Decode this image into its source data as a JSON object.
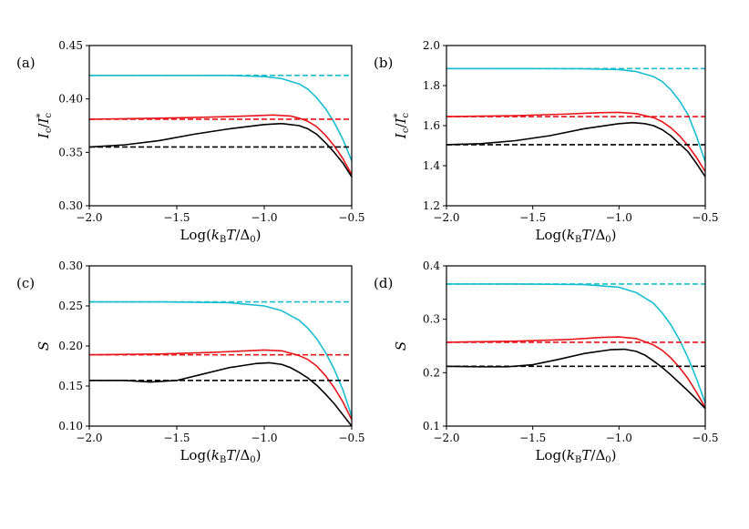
{
  "chart_data": [
    {
      "type": "line",
      "panel_label": "(a)",
      "xlabel": "Log(k_BT/Δ_0)",
      "xlabel_parts": [
        "Log(",
        "k",
        "B",
        "T",
        "/Δ",
        "0",
        ")"
      ],
      "ylabel": "I_c/I_c^*",
      "ylabel_parts": [
        "I",
        "c",
        "/",
        "I",
        "*",
        "c"
      ],
      "xlim": [
        -2.0,
        -0.5
      ],
      "ylim": [
        0.3,
        0.45
      ],
      "xticks": [
        -2.0,
        -1.5,
        -1.0,
        -0.5
      ],
      "xtick_labels": [
        "−2.0",
        "−1.5",
        "−1.0",
        "−0.5"
      ],
      "yticks": [
        0.3,
        0.35,
        0.4,
        0.45
      ],
      "ytick_labels": [
        "0.30",
        "0.35",
        "0.40",
        "0.45"
      ],
      "series": [
        {
          "name": "cyan-solid",
          "color": "#17becf",
          "style": "solid",
          "x": [
            -2.0,
            -1.6,
            -1.2,
            -1.0,
            -0.9,
            -0.8,
            -0.75,
            -0.7,
            -0.65,
            -0.6,
            -0.55,
            -0.5
          ],
          "y": [
            0.422,
            0.422,
            0.422,
            0.421,
            0.419,
            0.414,
            0.409,
            0.401,
            0.391,
            0.378,
            0.362,
            0.342
          ]
        },
        {
          "name": "cyan-dashed",
          "color": "#17becf",
          "style": "dashed",
          "x": [
            -2.0,
            -0.5
          ],
          "y": [
            0.422,
            0.422
          ]
        },
        {
          "name": "red-solid",
          "color": "#e8151b",
          "style": "solid",
          "x": [
            -2.0,
            -1.6,
            -1.3,
            -1.1,
            -0.95,
            -0.85,
            -0.8,
            -0.75,
            -0.7,
            -0.65,
            -0.6,
            -0.55,
            -0.5
          ],
          "y": [
            0.381,
            0.382,
            0.383,
            0.384,
            0.385,
            0.384,
            0.382,
            0.379,
            0.374,
            0.366,
            0.356,
            0.344,
            0.329
          ]
        },
        {
          "name": "red-dashed",
          "color": "#e8151b",
          "style": "dashed",
          "x": [
            -2.0,
            -0.5
          ],
          "y": [
            0.381,
            0.381
          ]
        },
        {
          "name": "black-solid",
          "color": "#000000",
          "style": "solid",
          "x": [
            -2.0,
            -1.8,
            -1.6,
            -1.4,
            -1.2,
            -1.0,
            -0.9,
            -0.8,
            -0.75,
            -0.7,
            -0.65,
            -0.6,
            -0.55,
            -0.5
          ],
          "y": [
            0.355,
            0.357,
            0.361,
            0.367,
            0.372,
            0.376,
            0.377,
            0.375,
            0.372,
            0.367,
            0.359,
            0.35,
            0.34,
            0.327
          ]
        },
        {
          "name": "black-dashed",
          "color": "#000000",
          "style": "dashed",
          "x": [
            -2.0,
            -0.5
          ],
          "y": [
            0.355,
            0.355
          ]
        }
      ]
    },
    {
      "type": "line",
      "panel_label": "(b)",
      "xlabel": "Log(k_BT/Δ_0)",
      "xlabel_parts": [
        "Log(",
        "k",
        "B",
        "T",
        "/Δ",
        "0",
        ")"
      ],
      "ylabel": "I_c/I_c^*",
      "ylabel_parts": [
        "I",
        "c",
        "/",
        "I",
        "*",
        "c"
      ],
      "xlim": [
        -2.0,
        -0.5
      ],
      "ylim": [
        1.2,
        2.0
      ],
      "xticks": [
        -2.0,
        -1.5,
        -1.0,
        -0.5
      ],
      "xtick_labels": [
        "−2.0",
        "−1.5",
        "−1.0",
        "−0.5"
      ],
      "yticks": [
        1.2,
        1.4,
        1.6,
        1.8,
        2.0
      ],
      "ytick_labels": [
        "1.2",
        "1.4",
        "1.6",
        "1.8",
        "2.0"
      ],
      "series": [
        {
          "name": "cyan-solid",
          "color": "#17becf",
          "style": "solid",
          "x": [
            -2.0,
            -1.6,
            -1.2,
            -1.0,
            -0.9,
            -0.8,
            -0.75,
            -0.7,
            -0.65,
            -0.6,
            -0.55,
            -0.5
          ],
          "y": [
            1.885,
            1.885,
            1.884,
            1.88,
            1.87,
            1.845,
            1.82,
            1.78,
            1.725,
            1.655,
            1.545,
            1.42
          ]
        },
        {
          "name": "cyan-dashed",
          "color": "#17becf",
          "style": "dashed",
          "x": [
            -2.0,
            -0.5
          ],
          "y": [
            1.885,
            1.885
          ]
        },
        {
          "name": "red-solid",
          "color": "#e8151b",
          "style": "solid",
          "x": [
            -2.0,
            -1.6,
            -1.3,
            -1.1,
            -1.0,
            -0.9,
            -0.8,
            -0.75,
            -0.7,
            -0.65,
            -0.6,
            -0.55,
            -0.5
          ],
          "y": [
            1.645,
            1.65,
            1.658,
            1.665,
            1.666,
            1.66,
            1.64,
            1.62,
            1.59,
            1.55,
            1.5,
            1.44,
            1.37
          ]
        },
        {
          "name": "red-dashed",
          "color": "#e8151b",
          "style": "dashed",
          "x": [
            -2.0,
            -0.5
          ],
          "y": [
            1.645,
            1.645
          ]
        },
        {
          "name": "black-solid",
          "color": "#000000",
          "style": "solid",
          "x": [
            -2.0,
            -1.8,
            -1.6,
            -1.4,
            -1.2,
            -1.0,
            -0.92,
            -0.85,
            -0.8,
            -0.75,
            -0.7,
            -0.65,
            -0.6,
            -0.55,
            -0.5
          ],
          "y": [
            1.505,
            1.51,
            1.525,
            1.55,
            1.585,
            1.61,
            1.615,
            1.61,
            1.6,
            1.58,
            1.55,
            1.51,
            1.47,
            1.41,
            1.345
          ]
        },
        {
          "name": "black-dashed",
          "color": "#000000",
          "style": "dashed",
          "x": [
            -2.0,
            -0.5
          ],
          "y": [
            1.505,
            1.505
          ]
        }
      ]
    },
    {
      "type": "line",
      "panel_label": "(c)",
      "xlabel": "Log(k_BT/Δ_0)",
      "xlabel_parts": [
        "Log(",
        "k",
        "B",
        "T",
        "/Δ",
        "0",
        ")"
      ],
      "ylabel": "S",
      "xlim": [
        -2.0,
        -0.5
      ],
      "ylim": [
        0.1,
        0.3
      ],
      "xticks": [
        -2.0,
        -1.5,
        -1.0,
        -0.5
      ],
      "xtick_labels": [
        "−2.0",
        "−1.5",
        "−1.0",
        "−0.5"
      ],
      "yticks": [
        0.1,
        0.15,
        0.2,
        0.25,
        0.3
      ],
      "ytick_labels": [
        "0.10",
        "0.15",
        "0.20",
        "0.25",
        "0.30"
      ],
      "series": [
        {
          "name": "cyan-solid",
          "color": "#17becf",
          "style": "solid",
          "x": [
            -2.0,
            -1.6,
            -1.2,
            -1.0,
            -0.9,
            -0.8,
            -0.75,
            -0.7,
            -0.65,
            -0.6,
            -0.55,
            -0.5
          ],
          "y": [
            0.255,
            0.255,
            0.254,
            0.25,
            0.244,
            0.232,
            0.222,
            0.209,
            0.192,
            0.171,
            0.145,
            0.112
          ]
        },
        {
          "name": "cyan-dashed",
          "color": "#17becf",
          "style": "dashed",
          "x": [
            -2.0,
            -0.5
          ],
          "y": [
            0.255,
            0.255
          ]
        },
        {
          "name": "red-solid",
          "color": "#e8151b",
          "style": "solid",
          "x": [
            -2.0,
            -1.6,
            -1.3,
            -1.1,
            -1.0,
            -0.9,
            -0.8,
            -0.75,
            -0.7,
            -0.65,
            -0.6,
            -0.55,
            -0.5
          ],
          "y": [
            0.189,
            0.19,
            0.192,
            0.194,
            0.195,
            0.194,
            0.188,
            0.183,
            0.175,
            0.163,
            0.148,
            0.13,
            0.108
          ]
        },
        {
          "name": "red-dashed",
          "color": "#e8151b",
          "style": "dashed",
          "x": [
            -2.0,
            -0.5
          ],
          "y": [
            0.189,
            0.189
          ]
        },
        {
          "name": "black-solid",
          "color": "#000000",
          "style": "solid",
          "x": [
            -2.0,
            -1.8,
            -1.65,
            -1.5,
            -1.35,
            -1.2,
            -1.05,
            -0.97,
            -0.9,
            -0.85,
            -0.8,
            -0.75,
            -0.7,
            -0.65,
            -0.6,
            -0.55,
            -0.5
          ],
          "y": [
            0.157,
            0.157,
            0.155,
            0.157,
            0.165,
            0.173,
            0.178,
            0.179,
            0.177,
            0.173,
            0.167,
            0.16,
            0.151,
            0.14,
            0.128,
            0.114,
            0.1
          ]
        },
        {
          "name": "black-dashed",
          "color": "#000000",
          "style": "dashed",
          "x": [
            -2.0,
            -0.5
          ],
          "y": [
            0.157,
            0.157
          ]
        }
      ]
    },
    {
      "type": "line",
      "panel_label": "(d)",
      "xlabel": "Log(k_BT/Δ_0)",
      "xlabel_parts": [
        "Log(",
        "k",
        "B",
        "T",
        "/Δ",
        "0",
        ")"
      ],
      "ylabel": "S",
      "xlim": [
        -2.0,
        -0.5
      ],
      "ylim": [
        0.1,
        0.4
      ],
      "xticks": [
        -2.0,
        -1.5,
        -1.0,
        -0.5
      ],
      "xtick_labels": [
        "−2.0",
        "−1.5",
        "−1.0",
        "−0.5"
      ],
      "yticks": [
        0.1,
        0.2,
        0.3,
        0.4
      ],
      "ytick_labels": [
        "0.1",
        "0.2",
        "0.3",
        "0.4"
      ],
      "series": [
        {
          "name": "cyan-solid",
          "color": "#17becf",
          "style": "solid",
          "x": [
            -2.0,
            -1.6,
            -1.2,
            -1.0,
            -0.9,
            -0.8,
            -0.75,
            -0.7,
            -0.65,
            -0.6,
            -0.55,
            -0.5
          ],
          "y": [
            0.366,
            0.366,
            0.365,
            0.36,
            0.35,
            0.33,
            0.312,
            0.29,
            0.262,
            0.228,
            0.188,
            0.143
          ]
        },
        {
          "name": "cyan-dashed",
          "color": "#17becf",
          "style": "dashed",
          "x": [
            -2.0,
            -0.5
          ],
          "y": [
            0.366,
            0.366
          ]
        },
        {
          "name": "red-solid",
          "color": "#e8151b",
          "style": "solid",
          "x": [
            -2.0,
            -1.6,
            -1.3,
            -1.1,
            -1.0,
            -0.9,
            -0.8,
            -0.75,
            -0.7,
            -0.65,
            -0.6,
            -0.55,
            -0.5
          ],
          "y": [
            0.257,
            0.259,
            0.262,
            0.266,
            0.267,
            0.264,
            0.252,
            0.242,
            0.228,
            0.21,
            0.189,
            0.163,
            0.135
          ]
        },
        {
          "name": "red-dashed",
          "color": "#e8151b",
          "style": "dashed",
          "x": [
            -2.0,
            -0.5
          ],
          "y": [
            0.257,
            0.257
          ]
        },
        {
          "name": "black-solid",
          "color": "#000000",
          "style": "solid",
          "x": [
            -2.0,
            -1.8,
            -1.65,
            -1.5,
            -1.35,
            -1.2,
            -1.05,
            -0.97,
            -0.9,
            -0.85,
            -0.8,
            -0.75,
            -0.7,
            -0.65,
            -0.6,
            -0.55,
            -0.5
          ],
          "y": [
            0.212,
            0.211,
            0.211,
            0.215,
            0.225,
            0.236,
            0.243,
            0.244,
            0.24,
            0.233,
            0.222,
            0.21,
            0.196,
            0.181,
            0.166,
            0.15,
            0.133
          ]
        },
        {
          "name": "black-dashed",
          "color": "#000000",
          "style": "dashed",
          "x": [
            -2.0,
            -0.5
          ],
          "y": [
            0.212,
            0.212
          ]
        }
      ]
    }
  ]
}
